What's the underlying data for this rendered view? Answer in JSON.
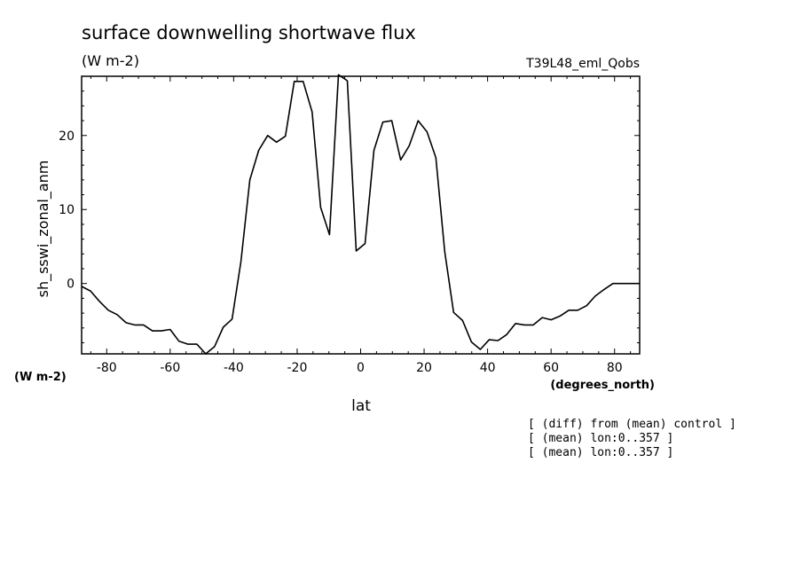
{
  "chart_data": {
    "type": "line",
    "title": "surface downwelling shortwave flux",
    "units": "(W m-2)",
    "run_label": "T39L48_eml_Qobs",
    "ylabel": "sh_sswi_zonal_anm",
    "ylabel_units": "(W m-2)",
    "xlabel": "lat",
    "xlabel_units": "(degrees_north)",
    "xlim": [
      -87.9,
      87.9
    ],
    "ylim": [
      -9.5,
      28
    ],
    "x_ticks": [
      -80,
      -60,
      -40,
      -20,
      0,
      20,
      40,
      60,
      80
    ],
    "x_tick_labels": [
      "-80",
      "-60",
      "-40",
      "-20",
      "0",
      "20",
      "40",
      "60",
      "80"
    ],
    "y_ticks": [
      0,
      10,
      20
    ],
    "y_tick_labels": [
      "0",
      "10",
      "20"
    ],
    "grid": false,
    "series": [
      {
        "color": "#000000",
        "x": [
          -87.9,
          -85.1,
          -82.3,
          -79.5,
          -76.7,
          -73.9,
          -71.2,
          -68.4,
          -65.6,
          -62.8,
          -60.0,
          -57.2,
          -54.4,
          -51.6,
          -48.8,
          -46.0,
          -43.3,
          -40.5,
          -37.7,
          -34.9,
          -32.1,
          -29.3,
          -26.5,
          -23.7,
          -20.9,
          -18.1,
          -15.3,
          -12.6,
          -9.8,
          -7.0,
          -4.2,
          -1.4,
          1.4,
          4.2,
          7.0,
          9.8,
          12.6,
          15.3,
          18.1,
          20.9,
          23.7,
          26.5,
          29.3,
          32.1,
          34.9,
          37.7,
          40.5,
          43.3,
          46.0,
          48.8,
          51.6,
          54.4,
          57.2,
          60.0,
          62.8,
          65.6,
          68.4,
          71.2,
          73.9,
          76.7,
          79.5,
          82.3,
          85.1,
          87.9
        ],
        "y": [
          -0.4,
          -1.0,
          -2.4,
          -3.6,
          -4.2,
          -5.3,
          -5.6,
          -5.6,
          -6.4,
          -6.4,
          -6.2,
          -7.8,
          -8.2,
          -8.2,
          -9.5,
          -8.5,
          -5.9,
          -4.8,
          3.0,
          14.0,
          18.0,
          20.0,
          19.1,
          19.9,
          27.3,
          27.3,
          23.2,
          10.3,
          6.6,
          28.2,
          27.4,
          4.4,
          5.4,
          18.0,
          21.8,
          22.0,
          16.7,
          18.6,
          22.0,
          20.5,
          17.0,
          4.3,
          -3.9,
          -5.0,
          -7.9,
          -8.9,
          -7.6,
          -7.7,
          -6.9,
          -5.4,
          -5.6,
          -5.6,
          -4.6,
          -4.9,
          -4.4,
          -3.6,
          -3.6,
          -3.0,
          -1.7,
          -0.8,
          0,
          0,
          0,
          0
        ]
      }
    ],
    "annotations": [
      "[ (diff) from (mean) control ]",
      "[ (mean) lon:0..357 ]",
      "[ (mean) lon:0..357 ]"
    ]
  }
}
